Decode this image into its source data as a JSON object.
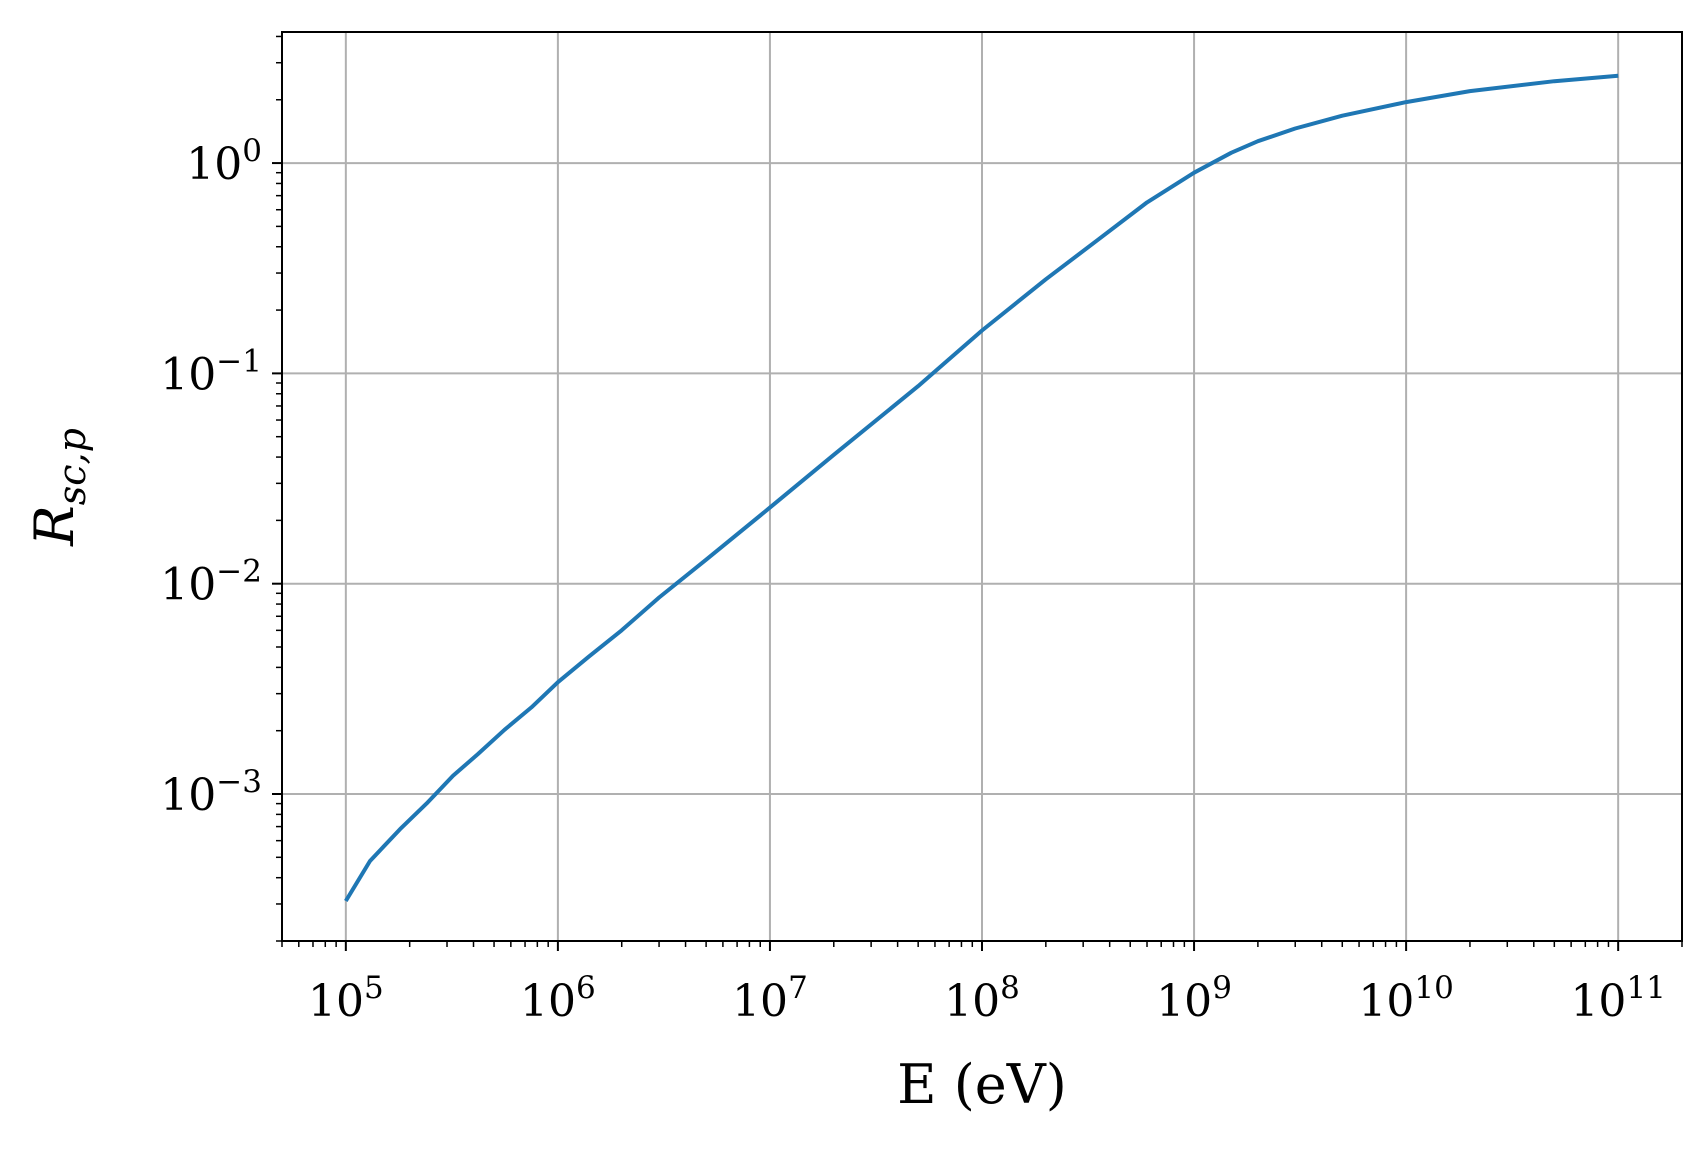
{
  "chart_data": {
    "type": "line",
    "title": "",
    "xlabel": "E (eV)",
    "ylabel": {
      "base": "R",
      "subscript": "sc,p"
    },
    "xscale": "log",
    "yscale": "log",
    "xlim": [
      50000,
      200000000000
    ],
    "ylim": [
      0.0002,
      4.2
    ],
    "grid": true,
    "legend": "none",
    "colors": {
      "series": "#1f77b4",
      "grid": "#b0b0b0",
      "axes": "#000000"
    },
    "x_ticks": [
      {
        "value": 100000,
        "base": "10",
        "exp": "5"
      },
      {
        "value": 1000000,
        "base": "10",
        "exp": "6"
      },
      {
        "value": 10000000,
        "base": "10",
        "exp": "7"
      },
      {
        "value": 100000000,
        "base": "10",
        "exp": "8"
      },
      {
        "value": 1000000000,
        "base": "10",
        "exp": "9"
      },
      {
        "value": 10000000000,
        "base": "10",
        "exp": "10"
      },
      {
        "value": 100000000000,
        "base": "10",
        "exp": "11"
      }
    ],
    "y_ticks": [
      {
        "value": 0.001,
        "base": "10",
        "exp": "−3"
      },
      {
        "value": 0.01,
        "base": "10",
        "exp": "−2"
      },
      {
        "value": 0.1,
        "base": "10",
        "exp": "−1"
      },
      {
        "value": 1,
        "base": "10",
        "exp": "0"
      }
    ],
    "series": [
      {
        "x": [
          100000,
          130000,
          180000,
          240000,
          320000,
          420000,
          560000,
          750000,
          1000000,
          1400000,
          2000000,
          3000000,
          5000000,
          10000000,
          20000000,
          50000000,
          100000000,
          200000000,
          350000000,
          600000000,
          1000000000,
          1500000000,
          2000000000,
          3000000000,
          5000000000,
          10000000000,
          20000000000,
          50000000000,
          100000000000
        ],
        "y": [
          0.00031,
          0.00048,
          0.00068,
          0.0009,
          0.00122,
          0.00155,
          0.00202,
          0.00258,
          0.0034,
          0.0045,
          0.006,
          0.0086,
          0.013,
          0.023,
          0.041,
          0.087,
          0.16,
          0.28,
          0.43,
          0.65,
          0.9,
          1.12,
          1.27,
          1.46,
          1.68,
          1.95,
          2.2,
          2.45,
          2.6
        ]
      }
    ]
  }
}
